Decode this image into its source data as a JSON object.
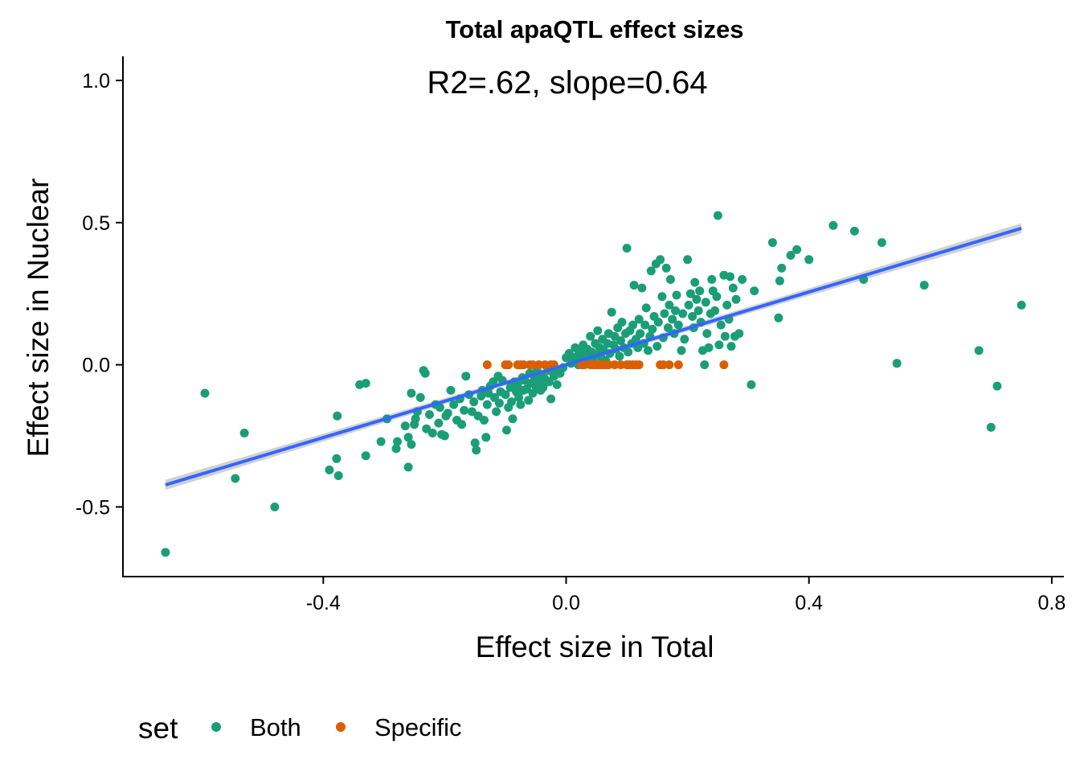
{
  "chart_data": {
    "type": "scatter",
    "title": "Total apaQTL effect sizes",
    "annotation": "R2=.62, slope=0.64",
    "xlabel": "Effect size in Total",
    "ylabel": "Effect size in Nuclear",
    "xlim": [
      -0.73,
      0.82
    ],
    "ylim": [
      -0.745,
      1.085
    ],
    "x_ticks": [
      -0.4,
      0.0,
      0.4,
      0.8
    ],
    "x_tick_labels": [
      "-0.4",
      "0.0",
      "0.4",
      "0.8"
    ],
    "y_ticks": [
      -0.5,
      0.0,
      0.5,
      1.0
    ],
    "y_tick_labels": [
      "-0.5",
      "0.0",
      "0.5",
      "1.0"
    ],
    "grid": false,
    "legend": {
      "title": "set",
      "position": "bottom-left",
      "entries": [
        "Both",
        "Specific"
      ]
    },
    "colors": {
      "Both": "#1b9e77",
      "Specific": "#d95f02",
      "fit": "#3366ff",
      "ci": "#bdbdbd"
    },
    "fit": {
      "slope": 0.64,
      "intercept": 0.0,
      "x_range": [
        -0.66,
        0.75
      ],
      "ci_half_width": 0.018
    },
    "series": [
      {
        "name": "Both",
        "points": [
          [
            -0.66,
            -0.66
          ],
          [
            -0.595,
            -0.1
          ],
          [
            -0.545,
            -0.4
          ],
          [
            -0.53,
            -0.24
          ],
          [
            -0.48,
            -0.5
          ],
          [
            -0.39,
            -0.37
          ],
          [
            -0.375,
            -0.39
          ],
          [
            -0.378,
            -0.33
          ],
          [
            -0.377,
            -0.18
          ],
          [
            -0.34,
            -0.07
          ],
          [
            -0.33,
            -0.065
          ],
          [
            -0.33,
            -0.32
          ],
          [
            -0.305,
            -0.27
          ],
          [
            -0.295,
            -0.19
          ],
          [
            -0.28,
            -0.295
          ],
          [
            -0.278,
            -0.27
          ],
          [
            -0.265,
            -0.215
          ],
          [
            -0.26,
            -0.255
          ],
          [
            -0.255,
            -0.28
          ],
          [
            -0.26,
            -0.36
          ],
          [
            -0.255,
            -0.1
          ],
          [
            -0.25,
            -0.21
          ],
          [
            -0.248,
            -0.19
          ],
          [
            -0.245,
            -0.165
          ],
          [
            -0.24,
            -0.115
          ],
          [
            -0.235,
            -0.02
          ],
          [
            -0.232,
            -0.03
          ],
          [
            -0.23,
            -0.225
          ],
          [
            -0.225,
            -0.175
          ],
          [
            -0.22,
            -0.24
          ],
          [
            -0.215,
            -0.14
          ],
          [
            -0.21,
            -0.205
          ],
          [
            -0.208,
            -0.15
          ],
          [
            -0.205,
            -0.245
          ],
          [
            -0.2,
            -0.25
          ],
          [
            -0.198,
            -0.18
          ],
          [
            -0.195,
            -0.17
          ],
          [
            -0.19,
            -0.09
          ],
          [
            -0.185,
            -0.14
          ],
          [
            -0.18,
            -0.195
          ],
          [
            -0.175,
            -0.12
          ],
          [
            -0.172,
            -0.21
          ],
          [
            -0.168,
            -0.16
          ],
          [
            -0.165,
            -0.04
          ],
          [
            -0.16,
            -0.105
          ],
          [
            -0.155,
            -0.165
          ],
          [
            -0.152,
            -0.13
          ],
          [
            -0.15,
            -0.275
          ],
          [
            -0.148,
            -0.3
          ],
          [
            -0.145,
            -0.18
          ],
          [
            -0.14,
            -0.11
          ],
          [
            -0.138,
            -0.09
          ],
          [
            -0.135,
            -0.195
          ],
          [
            -0.132,
            -0.255
          ],
          [
            -0.13,
            -0.14
          ],
          [
            -0.128,
            -0.1
          ],
          [
            -0.125,
            -0.075
          ],
          [
            -0.12,
            -0.06
          ],
          [
            -0.118,
            -0.115
          ],
          [
            -0.115,
            -0.165
          ],
          [
            -0.112,
            -0.04
          ],
          [
            -0.11,
            -0.135
          ],
          [
            -0.108,
            -0.095
          ],
          [
            -0.105,
            -0.055
          ],
          [
            -0.1,
            -0.105
          ],
          [
            -0.098,
            -0.23
          ],
          [
            -0.095,
            -0.15
          ],
          [
            -0.092,
            -0.08
          ],
          [
            -0.09,
            -0.13
          ],
          [
            -0.088,
            -0.19
          ],
          [
            -0.085,
            -0.06
          ],
          [
            -0.082,
            -0.095
          ],
          [
            -0.08,
            -0.07
          ],
          [
            -0.078,
            -0.115
          ],
          [
            -0.075,
            -0.14
          ],
          [
            -0.072,
            -0.045
          ],
          [
            -0.07,
            -0.09
          ],
          [
            -0.068,
            -0.055
          ],
          [
            -0.065,
            -0.085
          ],
          [
            -0.062,
            -0.125
          ],
          [
            -0.06,
            -0.03
          ],
          [
            -0.058,
            -0.065
          ],
          [
            -0.055,
            -0.1
          ],
          [
            -0.052,
            -0.045
          ],
          [
            -0.05,
            -0.075
          ],
          [
            -0.048,
            -0.02
          ],
          [
            -0.045,
            -0.06
          ],
          [
            -0.042,
            -0.09
          ],
          [
            -0.04,
            -0.035
          ],
          [
            -0.038,
            -0.08
          ],
          [
            -0.035,
            -0.05
          ],
          [
            -0.03,
            -0.02
          ],
          [
            -0.028,
            -0.06
          ],
          [
            -0.025,
            -0.12
          ],
          [
            -0.02,
            -0.04
          ],
          [
            -0.018,
            -0.015
          ],
          [
            -0.015,
            -0.07
          ],
          [
            -0.01,
            -0.03
          ],
          [
            -0.005,
            -0.01
          ],
          [
            0.0,
            0.025
          ],
          [
            0.005,
            0.04
          ],
          [
            0.008,
            0.005
          ],
          [
            0.012,
            0.02
          ],
          [
            0.015,
            0.06
          ],
          [
            0.018,
            0.03
          ],
          [
            0.02,
            0.0
          ],
          [
            0.022,
            0.045
          ],
          [
            0.025,
            0.015
          ],
          [
            0.028,
            0.07
          ],
          [
            0.03,
            0.035
          ],
          [
            0.032,
            0.005
          ],
          [
            0.035,
            0.055
          ],
          [
            0.038,
            0.02
          ],
          [
            0.04,
            0.1
          ],
          [
            0.042,
            0.045
          ],
          [
            0.045,
            0.01
          ],
          [
            0.048,
            0.075
          ],
          [
            0.05,
            0.035
          ],
          [
            0.052,
            0.12
          ],
          [
            0.055,
            0.06
          ],
          [
            0.058,
            0.025
          ],
          [
            0.06,
            0.09
          ],
          [
            0.062,
            0.05
          ],
          [
            0.065,
            0.015
          ],
          [
            0.068,
            0.075
          ],
          [
            0.07,
            0.11
          ],
          [
            0.072,
            0.04
          ],
          [
            0.075,
            0.185
          ],
          [
            0.078,
            0.07
          ],
          [
            0.08,
            0.1
          ],
          [
            0.082,
            0.055
          ],
          [
            0.085,
            0.13
          ],
          [
            0.088,
            0.03
          ],
          [
            0.09,
            0.085
          ],
          [
            0.092,
            0.15
          ],
          [
            0.095,
            0.06
          ],
          [
            0.098,
            0.11
          ],
          [
            0.1,
            0.41
          ],
          [
            0.102,
            0.045
          ],
          [
            0.105,
            0.12
          ],
          [
            0.108,
            0.075
          ],
          [
            0.11,
            0.14
          ],
          [
            0.112,
            0.28
          ],
          [
            0.115,
            0.09
          ],
          [
            0.118,
            0.06
          ],
          [
            0.12,
            0.16
          ],
          [
            0.122,
            0.11
          ],
          [
            0.125,
            0.27
          ],
          [
            0.128,
            0.075
          ],
          [
            0.13,
            0.14
          ],
          [
            0.132,
            0.2
          ],
          [
            0.135,
            0.05
          ],
          [
            0.138,
            0.1
          ],
          [
            0.14,
            0.33
          ],
          [
            0.142,
            0.125
          ],
          [
            0.145,
            0.17
          ],
          [
            0.148,
            0.355
          ],
          [
            0.15,
            0.065
          ],
          [
            0.152,
            0.15
          ],
          [
            0.155,
            0.37
          ],
          [
            0.158,
            0.24
          ],
          [
            0.16,
            0.095
          ],
          [
            0.162,
            0.18
          ],
          [
            0.165,
            0.34
          ],
          [
            0.168,
            0.13
          ],
          [
            0.17,
            0.21
          ],
          [
            0.172,
            0.3
          ],
          [
            0.175,
            0.16
          ],
          [
            0.178,
            0.11
          ],
          [
            0.18,
            0.19
          ],
          [
            0.182,
            0.245
          ],
          [
            0.185,
            0.14
          ],
          [
            0.19,
            0.05
          ],
          [
            0.192,
            0.18
          ],
          [
            0.195,
            0.09
          ],
          [
            0.2,
            0.37
          ],
          [
            0.202,
            0.21
          ],
          [
            0.205,
            0.25
          ],
          [
            0.208,
            0.17
          ],
          [
            0.21,
            0.13
          ],
          [
            0.212,
            0.29
          ],
          [
            0.215,
            0.23
          ],
          [
            0.218,
            0.19
          ],
          [
            0.22,
            0.26
          ],
          [
            0.222,
            0.15
          ],
          [
            0.225,
            0.05
          ],
          [
            0.228,
            0.0
          ],
          [
            0.23,
            0.22
          ],
          [
            0.232,
            0.11
          ],
          [
            0.235,
            0.06
          ],
          [
            0.238,
            0.18
          ],
          [
            0.24,
            0.3
          ],
          [
            0.242,
            0.26
          ],
          [
            0.245,
            0.19
          ],
          [
            0.248,
            0.24
          ],
          [
            0.25,
            0.525
          ],
          [
            0.252,
            0.07
          ],
          [
            0.255,
            0.14
          ],
          [
            0.26,
            0.315
          ],
          [
            0.262,
            0.1
          ],
          [
            0.265,
            0.21
          ],
          [
            0.268,
            0.16
          ],
          [
            0.27,
            0.31
          ],
          [
            0.272,
            0.065
          ],
          [
            0.275,
            0.27
          ],
          [
            0.278,
            0.1
          ],
          [
            0.28,
            0.23
          ],
          [
            0.285,
            0.11
          ],
          [
            0.29,
            0.3
          ],
          [
            0.305,
            -0.07
          ],
          [
            0.31,
            0.26
          ],
          [
            0.34,
            0.43
          ],
          [
            0.35,
            0.165
          ],
          [
            0.352,
            0.295
          ],
          [
            0.355,
            0.34
          ],
          [
            0.37,
            0.385
          ],
          [
            0.38,
            0.405
          ],
          [
            0.4,
            0.37
          ],
          [
            0.44,
            0.49
          ],
          [
            0.475,
            0.47
          ],
          [
            0.49,
            0.3
          ],
          [
            0.52,
            0.43
          ],
          [
            0.545,
            0.005
          ],
          [
            0.59,
            0.28
          ],
          [
            0.68,
            0.05
          ],
          [
            0.7,
            -0.22
          ],
          [
            0.71,
            -0.075
          ],
          [
            0.75,
            0.21
          ]
        ]
      },
      {
        "name": "Specific",
        "points": [
          [
            -0.13,
            0.0
          ],
          [
            -0.1,
            0.0
          ],
          [
            -0.095,
            0.0
          ],
          [
            -0.08,
            0.0
          ],
          [
            -0.075,
            0.0
          ],
          [
            -0.07,
            0.0
          ],
          [
            -0.06,
            0.0
          ],
          [
            -0.055,
            0.0
          ],
          [
            -0.045,
            0.0
          ],
          [
            -0.035,
            0.0
          ],
          [
            -0.025,
            0.0
          ],
          [
            -0.02,
            0.0
          ],
          [
            0.025,
            0.0
          ],
          [
            0.03,
            0.0
          ],
          [
            0.04,
            0.0
          ],
          [
            0.045,
            0.0
          ],
          [
            0.05,
            0.0
          ],
          [
            0.055,
            0.0
          ],
          [
            0.06,
            0.0
          ],
          [
            0.065,
            0.0
          ],
          [
            0.07,
            0.0
          ],
          [
            0.08,
            0.0
          ],
          [
            0.09,
            0.0
          ],
          [
            0.1,
            0.0
          ],
          [
            0.105,
            0.0
          ],
          [
            0.11,
            0.0
          ],
          [
            0.115,
            0.0
          ],
          [
            0.12,
            0.0
          ],
          [
            0.155,
            0.0
          ],
          [
            0.16,
            0.0
          ],
          [
            0.17,
            0.0
          ],
          [
            0.185,
            0.0
          ],
          [
            0.26,
            0.0
          ]
        ]
      }
    ]
  }
}
